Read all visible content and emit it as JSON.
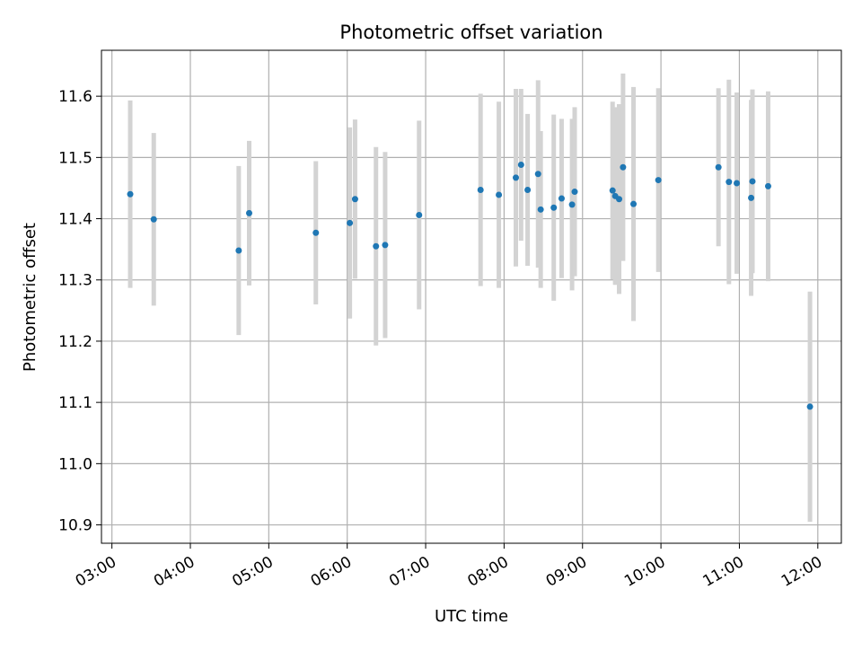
{
  "chart_data": {
    "type": "scatter",
    "title": "Photometric offset variation",
    "xlabel": "UTC time",
    "ylabel": "Photometric offset",
    "xlim": [
      "02:52",
      "12:18"
    ],
    "ylim": [
      10.87,
      11.675
    ],
    "x_ticks": [
      "03:00",
      "04:00",
      "05:00",
      "06:00",
      "07:00",
      "08:00",
      "09:00",
      "10:00",
      "11:00",
      "12:00"
    ],
    "y_ticks": [
      "10.9",
      "11.0",
      "11.1",
      "11.2",
      "11.3",
      "11.4",
      "11.5",
      "11.6"
    ],
    "grid": true,
    "colors": {
      "point": "#1f77b4",
      "errorbar": "#d3d3d3",
      "grid": "#b0b0b0",
      "axes": "#000000"
    },
    "series": [
      {
        "points": [
          {
            "x": "03:14",
            "y": 11.44,
            "err": 0.153
          },
          {
            "x": "03:32",
            "y": 11.399,
            "err": 0.141
          },
          {
            "x": "04:37",
            "y": 11.348,
            "err": 0.138
          },
          {
            "x": "04:45",
            "y": 11.409,
            "err": 0.118
          },
          {
            "x": "05:36",
            "y": 11.377,
            "err": 0.117
          },
          {
            "x": "06:02",
            "y": 11.393,
            "err": 0.156
          },
          {
            "x": "06:06",
            "y": 11.432,
            "err": 0.13
          },
          {
            "x": "06:22",
            "y": 11.355,
            "err": 0.162
          },
          {
            "x": "06:29",
            "y": 11.357,
            "err": 0.152
          },
          {
            "x": "06:55",
            "y": 11.406,
            "err": 0.154
          },
          {
            "x": "07:42",
            "y": 11.447,
            "err": 0.157
          },
          {
            "x": "07:56",
            "y": 11.439,
            "err": 0.152
          },
          {
            "x": "08:09",
            "y": 11.467,
            "err": 0.145
          },
          {
            "x": "08:13",
            "y": 11.488,
            "err": 0.124
          },
          {
            "x": "08:18",
            "y": 11.447,
            "err": 0.124
          },
          {
            "x": "08:26",
            "y": 11.473,
            "err": 0.153
          },
          {
            "x": "08:28",
            "y": 11.415,
            "err": 0.128
          },
          {
            "x": "08:38",
            "y": 11.418,
            "err": 0.152
          },
          {
            "x": "08:44",
            "y": 11.433,
            "err": 0.13
          },
          {
            "x": "08:52",
            "y": 11.423,
            "err": 0.14
          },
          {
            "x": "08:54",
            "y": 11.444,
            "err": 0.138
          },
          {
            "x": "09:23",
            "y": 11.446,
            "err": 0.145
          },
          {
            "x": "09:25",
            "y": 11.437,
            "err": 0.145
          },
          {
            "x": "09:28",
            "y": 11.432,
            "err": 0.155
          },
          {
            "x": "09:31",
            "y": 11.484,
            "err": 0.153
          },
          {
            "x": "09:39",
            "y": 11.424,
            "err": 0.191
          },
          {
            "x": "09:58",
            "y": 11.463,
            "err": 0.15
          },
          {
            "x": "10:44",
            "y": 11.484,
            "err": 0.129
          },
          {
            "x": "10:52",
            "y": 11.46,
            "err": 0.167
          },
          {
            "x": "10:58",
            "y": 11.458,
            "err": 0.148
          },
          {
            "x": "11:09",
            "y": 11.434,
            "err": 0.16
          },
          {
            "x": "11:10",
            "y": 11.461,
            "err": 0.15
          },
          {
            "x": "11:22",
            "y": 11.453,
            "err": 0.155
          },
          {
            "x": "11:54",
            "y": 11.093,
            "err": 0.188
          }
        ]
      }
    ]
  }
}
